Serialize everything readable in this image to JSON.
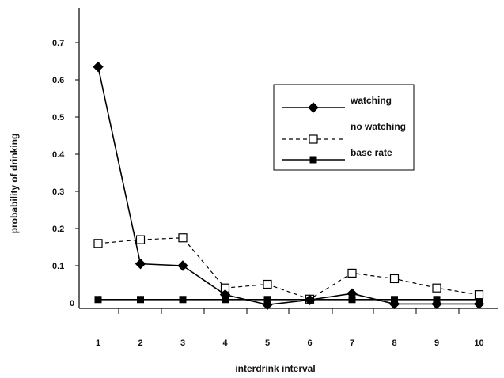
{
  "chart_data": {
    "type": "line",
    "title": "",
    "xlabel": "interdrink interval",
    "ylabel": "probability of drinking",
    "categories": [
      1,
      2,
      3,
      4,
      5,
      6,
      7,
      8,
      9,
      10
    ],
    "y_ticks": [
      0,
      0.1,
      0.2,
      0.3,
      0.4,
      0.5,
      0.6,
      0.7
    ],
    "y_tick_labels": [
      "0",
      "0.1",
      "0.2",
      "0.3",
      "0.4",
      "0.5",
      "0.6",
      "0.7"
    ],
    "ylim": [
      -0.02,
      0.8
    ],
    "grid": false,
    "legend_position": "center-right",
    "series": [
      {
        "name": "watching",
        "marker": "diamond-filled",
        "line_style": "solid",
        "color": "#000000",
        "values": [
          0.635,
          0.105,
          0.1,
          0.022,
          -0.005,
          0.008,
          0.025,
          -0.003,
          -0.003,
          -0.003
        ]
      },
      {
        "name": "no watching",
        "marker": "square-open",
        "line_style": "dashed",
        "color": "#000000",
        "values": [
          0.16,
          0.17,
          0.175,
          0.04,
          0.05,
          0.01,
          0.08,
          0.065,
          0.04,
          0.022
        ]
      },
      {
        "name": "base rate",
        "marker": "square-filled",
        "line_style": "solid",
        "color": "#000000",
        "values": [
          0.009,
          0.009,
          0.009,
          0.009,
          0.009,
          0.009,
          0.009,
          0.009,
          0.009,
          0.009
        ]
      }
    ]
  }
}
